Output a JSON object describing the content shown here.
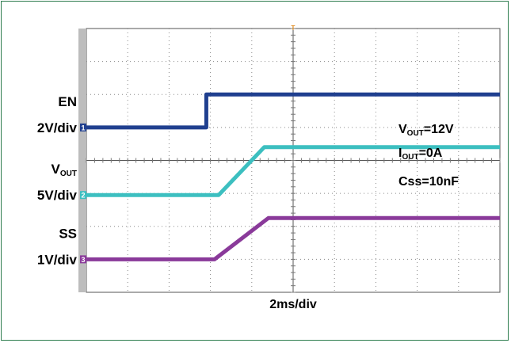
{
  "chart_data": {
    "type": "line",
    "title": "",
    "xlabel": "2ms/div",
    "x_divisions": 10,
    "y_divisions": 8,
    "grid": true,
    "x_unit": "div",
    "series": [
      {
        "name": "EN",
        "scale_label": "2V/div",
        "color": "#1f3f8f",
        "marker": "1",
        "x": [
          0,
          2.9,
          2.9,
          10
        ],
        "y": [
          5.0,
          5.0,
          6.0,
          6.0
        ]
      },
      {
        "name": "V",
        "name_sub": "OUT",
        "scale_label": "5V/div",
        "color": "#3cbfc0",
        "marker": "2",
        "x": [
          0,
          3.2,
          4.3,
          10
        ],
        "y": [
          2.95,
          2.95,
          4.4,
          4.4
        ]
      },
      {
        "name": "SS",
        "scale_label": "1V/div",
        "color": "#8a3a9a",
        "marker": "3",
        "x": [
          0,
          3.1,
          4.4,
          10
        ],
        "y": [
          1.0,
          1.0,
          2.25,
          2.25
        ]
      }
    ],
    "annotations": [
      {
        "main": "V",
        "sub": "OUT",
        "rest": "=12V"
      },
      {
        "main": "I",
        "sub": "OUT",
        "rest": "=0A"
      },
      {
        "main": "Css=10nF",
        "sub": "",
        "rest": ""
      }
    ],
    "trigger_marker": "T"
  }
}
